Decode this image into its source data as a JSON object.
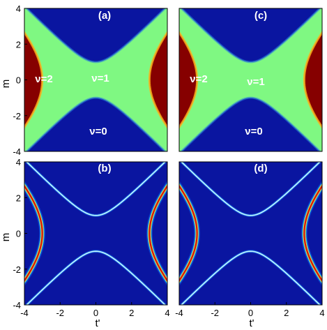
{
  "chart_data": [
    {
      "type": "heatmap",
      "panel_label": "(a)",
      "xlabel": "",
      "ylabel": "m",
      "xlim": [
        -4,
        4
      ],
      "ylim": [
        -4,
        4
      ],
      "x_ticks": [],
      "y_ticks": [
        "-4",
        "-2",
        "0",
        "2",
        "4"
      ],
      "colormap": "jet",
      "content": "winding number map",
      "boundary_shape": "hyperbola m^2 - t'^2 = 1 (nu=1 / nu=0)",
      "outer_boundary": "hyperbola t'^2 - m^2 = 9 (nu=2 / nu=1)",
      "region_labels": [
        "ν=2",
        "ν=1",
        "ν=0"
      ],
      "region_values": {
        "ν=2": 2,
        "ν=1": 1,
        "ν=0": 0
      }
    },
    {
      "type": "heatmap",
      "panel_label": "(c)",
      "xlabel": "",
      "ylabel": "",
      "xlim": [
        -4,
        4
      ],
      "ylim": [
        -4,
        4
      ],
      "x_ticks": [],
      "y_ticks": [],
      "colormap": "jet",
      "content": "winding number map",
      "region_labels": [
        "ν=2",
        "ν=1",
        "ν=0"
      ],
      "region_values": {
        "ν=2": 2,
        "ν=1": 1,
        "ν=0": 0
      }
    },
    {
      "type": "heatmap",
      "panel_label": "(b)",
      "xlabel": "t'",
      "ylabel": "m",
      "xlim": [
        -4,
        4
      ],
      "ylim": [
        -4,
        4
      ],
      "x_ticks": [
        "-4",
        "-2",
        "0",
        "2",
        "4"
      ],
      "y_ticks": [
        "-4",
        "-2",
        "0",
        "2",
        "4"
      ],
      "colormap": "jet",
      "content": "phase boundary curves",
      "curves": [
        "t'^2 - m^2 = 9",
        "m^2 - t'^2 = 1"
      ]
    },
    {
      "type": "heatmap",
      "panel_label": "(d)",
      "xlabel": "t'",
      "ylabel": "",
      "xlim": [
        -4,
        4
      ],
      "ylim": [
        -4,
        4
      ],
      "x_ticks": [
        "-4",
        "-2",
        "0",
        "2",
        "4"
      ],
      "y_ticks": [],
      "colormap": "jet",
      "content": "phase boundary curves",
      "curves": [
        "t'^2 - m^2 = 9",
        "m^2 - t'^2 = 1"
      ]
    }
  ],
  "colors": {
    "nu0": "#0a15a0",
    "nu1": "#7ff882",
    "nu2": "#860000",
    "background": "#0a15a0"
  }
}
